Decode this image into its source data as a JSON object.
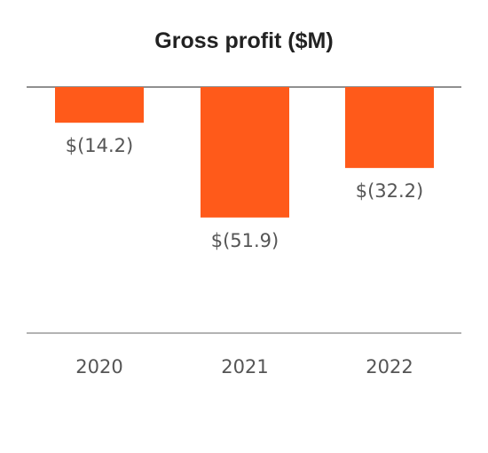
{
  "chart_data": {
    "type": "bar",
    "title": "Gross profit ($M)",
    "xlabel": "",
    "ylabel": "",
    "categories": [
      "2020",
      "2021",
      "2022"
    ],
    "values": [
      -14.2,
      -51.9,
      -32.2
    ],
    "data_labels": [
      "$(14.2)",
      "$(51.9)",
      "$(32.2)"
    ],
    "ylim": [
      -60,
      0
    ],
    "grid": false,
    "legend": "none",
    "colors": {
      "bar": "#FF5A1A",
      "baseline": "#6b6b6b",
      "axis": "#9a9a9a",
      "text": "#555555",
      "title": "#222222"
    }
  }
}
